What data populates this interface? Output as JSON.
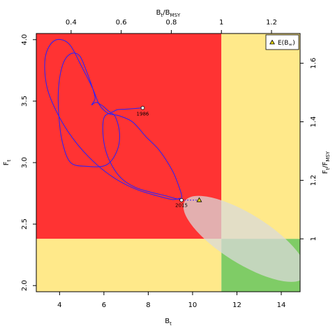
{
  "chart_data": {
    "type": "line",
    "subtype": "kobe-phase-plot",
    "xlabel": {
      "main": "B",
      "sub": "t"
    },
    "ylabel": {
      "main": "F",
      "sub": "t"
    },
    "x2label": {
      "main": "B",
      "sub1": "t",
      "sep": "/",
      "main2": "B",
      "sub2": "MSY"
    },
    "y2label": {
      "main": "F",
      "sub1": "t",
      "sep": "/",
      "main2": "F",
      "sub2": "MSY"
    },
    "xlim": [
      2.95,
      14.85
    ],
    "ylim": [
      1.95,
      4.05
    ],
    "x_ticks": [
      "4",
      "6",
      "8",
      "10",
      "12",
      "14"
    ],
    "y_ticks": [
      "2.0",
      "2.5",
      "3.0",
      "3.5",
      "4.0"
    ],
    "x2_ticks": [
      "0.4",
      "0.6",
      "0.8",
      "1",
      "1.2"
    ],
    "y2_ticks": [
      "1",
      "1.2",
      "1.4",
      "1.6"
    ],
    "bmsy": 11.3,
    "fmsy": 2.38,
    "quadrant_colors": {
      "overfished_overfishing": "#ff3333",
      "overfishing_only": "#ffe98a",
      "overfished_only": "#ffe98a",
      "healthy": "#7fcc66"
    },
    "ellipse": {
      "cx": 12.36,
      "cy": 2.38,
      "rx": 3.2,
      "ry": 0.2,
      "angle_deg": -32,
      "color": "#d9d9d9",
      "opacity": 0.75
    },
    "trajectory_color": "#3322ee",
    "trajectory": [
      [
        7.75,
        3.445
      ],
      [
        7.4,
        3.44
      ],
      [
        7.0,
        3.435
      ],
      [
        6.6,
        3.43
      ],
      [
        6.3,
        3.41
      ],
      [
        5.95,
        3.46
      ],
      [
        5.65,
        3.49
      ],
      [
        5.45,
        3.47
      ],
      [
        5.6,
        3.52
      ],
      [
        5.5,
        3.6
      ],
      [
        5.2,
        3.75
      ],
      [
        4.9,
        3.87
      ],
      [
        4.5,
        3.885
      ],
      [
        4.15,
        3.8
      ],
      [
        3.95,
        3.6
      ],
      [
        3.98,
        3.35
      ],
      [
        4.15,
        3.15
      ],
      [
        4.5,
        3.0
      ],
      [
        5.2,
        2.97
      ],
      [
        6.1,
        2.98
      ],
      [
        6.6,
        3.1
      ],
      [
        6.7,
        3.25
      ],
      [
        6.45,
        3.39
      ],
      [
        6.05,
        3.38
      ],
      [
        5.95,
        3.28
      ],
      [
        6.05,
        3.12
      ],
      [
        6.35,
        2.98
      ],
      [
        6.8,
        2.87
      ],
      [
        7.4,
        2.8
      ],
      [
        8.1,
        2.76
      ],
      [
        8.8,
        2.73
      ],
      [
        9.3,
        2.705
      ],
      [
        9.5,
        2.71
      ],
      [
        9.45,
        2.77
      ],
      [
        9.1,
        2.93
      ],
      [
        8.5,
        3.1
      ],
      [
        7.9,
        3.21
      ],
      [
        7.3,
        3.33
      ],
      [
        6.7,
        3.38
      ],
      [
        6.2,
        3.4
      ],
      [
        5.8,
        3.47
      ],
      [
        5.5,
        3.6
      ],
      [
        5.0,
        3.78
      ],
      [
        4.4,
        3.97
      ],
      [
        3.75,
        3.99
      ],
      [
        3.35,
        3.85
      ],
      [
        3.45,
        3.6
      ],
      [
        4.05,
        3.35
      ],
      [
        4.8,
        3.15
      ],
      [
        5.7,
        2.98
      ],
      [
        6.6,
        2.86
      ],
      [
        7.5,
        2.78
      ],
      [
        8.4,
        2.73
      ],
      [
        9.1,
        2.7
      ],
      [
        9.45,
        2.71
      ],
      [
        9.5,
        2.695
      ]
    ],
    "projection": [
      [
        9.5,
        2.695
      ],
      [
        10.3,
        2.695
      ]
    ],
    "start_point": {
      "x": 7.75,
      "y": 3.445,
      "label": "1986"
    },
    "end_point": {
      "x": 9.5,
      "y": 2.695,
      "label": "2015"
    },
    "expected_point": {
      "x": 10.3,
      "y": 2.695,
      "color": "#e8d800"
    },
    "legend": {
      "position": "top-right",
      "label": "E(B",
      "sub": "∞",
      "suffix": ")"
    }
  }
}
